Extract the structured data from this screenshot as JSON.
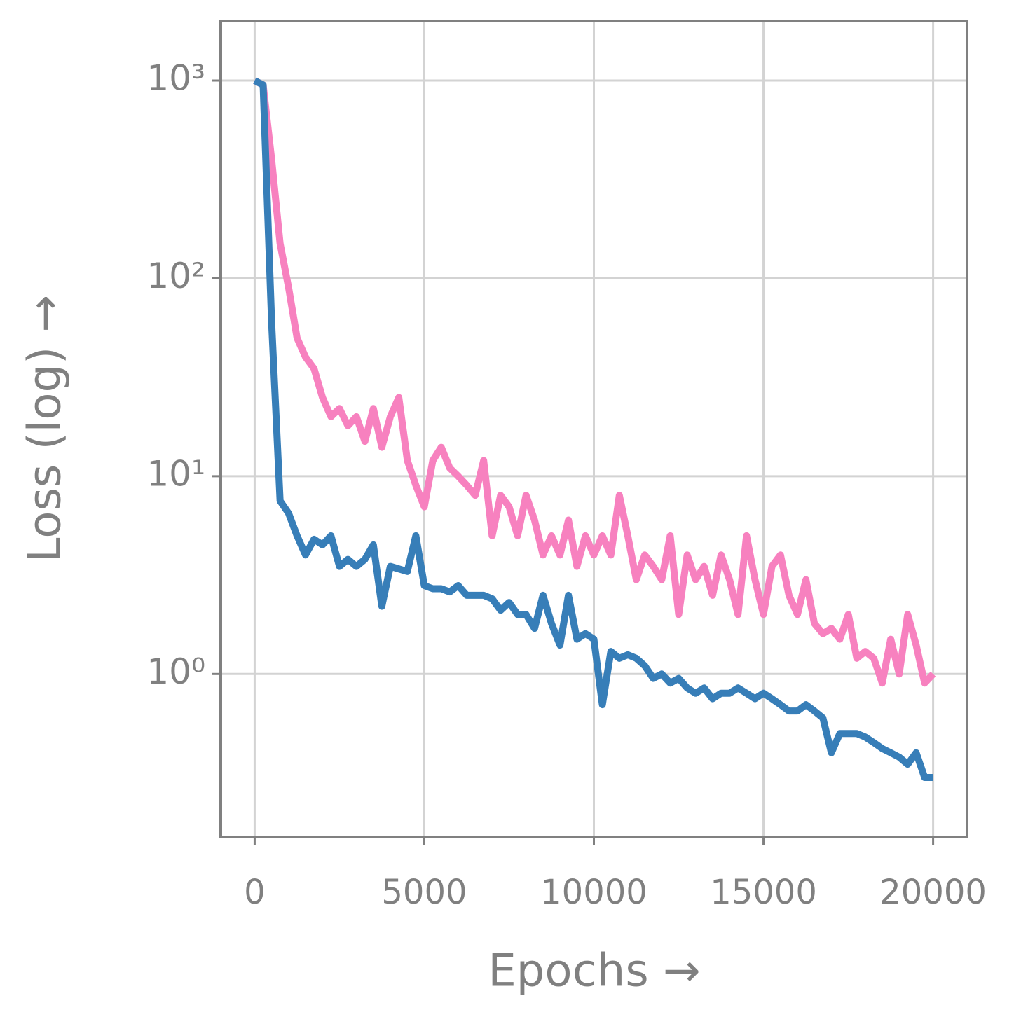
{
  "chart_data": {
    "type": "line",
    "xlabel": "Epochs →",
    "ylabel": "Loss (log) →",
    "x": [
      0,
      250,
      500,
      750,
      1000,
      1250,
      1500,
      1750,
      2000,
      2250,
      2500,
      2750,
      3000,
      3250,
      3500,
      3750,
      4000,
      4250,
      4500,
      4750,
      5000,
      5250,
      5500,
      5750,
      6000,
      6250,
      6500,
      6750,
      7000,
      7250,
      7500,
      7750,
      8000,
      8250,
      8500,
      8750,
      9000,
      9250,
      9500,
      9750,
      10000,
      10250,
      10500,
      10750,
      11000,
      11250,
      11500,
      11750,
      12000,
      12250,
      12500,
      12750,
      13000,
      13250,
      13500,
      13750,
      14000,
      14250,
      14500,
      14750,
      15000,
      15250,
      15500,
      15750,
      16000,
      16250,
      16500,
      16750,
      17000,
      17250,
      17500,
      17750,
      18000,
      18250,
      18500,
      18750,
      19000,
      19250,
      19500,
      19750,
      20000
    ],
    "series": [
      {
        "color": "#f781bf",
        "values": [
          1000,
          950,
          400,
          150,
          90,
          50,
          40,
          35,
          25,
          20,
          22,
          18,
          20,
          15,
          22,
          14,
          20,
          25,
          12,
          9,
          7,
          12,
          14,
          11,
          10,
          9,
          8,
          12,
          5,
          8,
          7,
          5,
          8,
          6,
          4,
          5,
          4,
          6,
          3.5,
          5,
          4,
          5,
          4,
          8,
          5,
          3,
          4,
          3.5,
          3,
          5,
          2,
          4,
          3,
          3.5,
          2.5,
          4,
          3,
          2,
          5,
          3,
          2,
          3.5,
          4,
          2.5,
          2,
          3,
          1.8,
          1.6,
          1.7,
          1.5,
          2,
          1.2,
          1.3,
          1.2,
          0.9,
          1.5,
          1,
          2,
          1.4,
          0.9,
          1.0
        ]
      },
      {
        "color": "#377eb8",
        "values": [
          1000,
          950,
          60,
          7.5,
          6.5,
          5,
          4,
          4.8,
          4.5,
          5,
          3.5,
          3.8,
          3.5,
          3.8,
          4.5,
          2.2,
          3.5,
          3.4,
          3.3,
          5,
          2.8,
          2.7,
          2.7,
          2.6,
          2.8,
          2.5,
          2.5,
          2.5,
          2.4,
          2.1,
          2.3,
          2,
          2,
          1.7,
          2.5,
          1.8,
          1.4,
          2.5,
          1.5,
          1.6,
          1.5,
          0.7,
          1.3,
          1.2,
          1.25,
          1.2,
          1.1,
          0.95,
          1.0,
          0.9,
          0.95,
          0.85,
          0.8,
          0.85,
          0.75,
          0.8,
          0.8,
          0.85,
          0.8,
          0.75,
          0.8,
          0.75,
          0.7,
          0.65,
          0.65,
          0.7,
          0.65,
          0.6,
          0.4,
          0.5,
          0.5,
          0.5,
          0.48,
          0.45,
          0.42,
          0.4,
          0.38,
          0.35,
          0.4,
          0.3,
          0.3
        ]
      }
    ],
    "xlim": [
      -1000,
      21000
    ],
    "xticks": [
      0,
      5000,
      10000,
      15000,
      20000
    ],
    "ylim": [
      0.15,
      2000
    ],
    "yticks": [
      {
        "value": 1,
        "label": "10⁰"
      },
      {
        "value": 10,
        "label": "10¹"
      },
      {
        "value": 100,
        "label": "10²"
      },
      {
        "value": 1000,
        "label": "10³"
      }
    ],
    "yscale": "log",
    "grid": true
  }
}
